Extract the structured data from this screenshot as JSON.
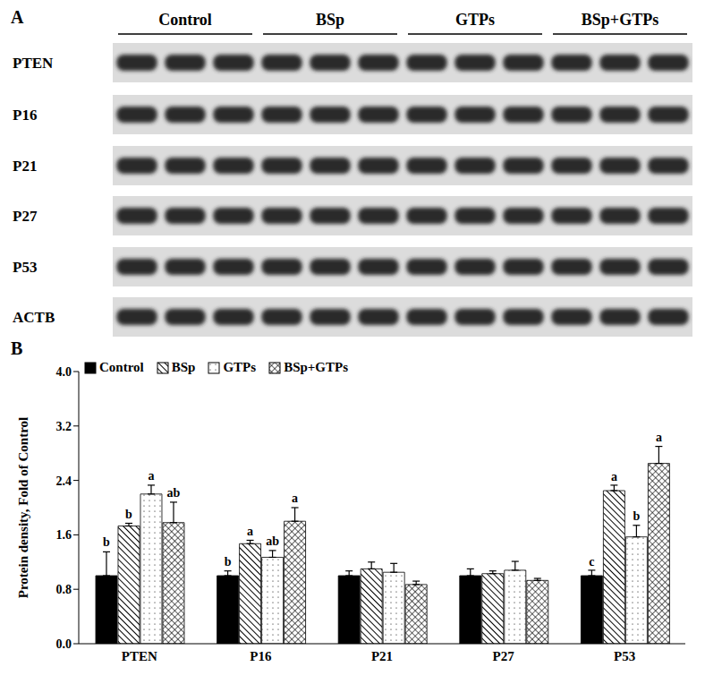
{
  "panel_labels": [
    "A",
    "B"
  ],
  "blot": {
    "groups": [
      "Control",
      "BSp",
      "GTPs",
      "BSp+GTPs"
    ],
    "lanes_per_group": 3,
    "proteins": [
      "PTEN",
      "P16",
      "P21",
      "P27",
      "P53",
      "ACTB"
    ]
  },
  "chart_data": {
    "type": "bar",
    "categories": [
      "PTEN",
      "P16",
      "P21",
      "P27",
      "P53"
    ],
    "ylabel": "Protein density, Fold of Control",
    "ylim": [
      0,
      4
    ],
    "yticks": [
      {
        "value": 0,
        "label": "0.0"
      },
      {
        "value": 0.8,
        "label": "0.8"
      },
      {
        "value": 1.6,
        "label": "1.6"
      },
      {
        "value": 2.4,
        "label": "2.4"
      },
      {
        "value": 3.2,
        "label": "3.2"
      },
      {
        "value": 4,
        "label": "4.0"
      }
    ],
    "legend": "top-left",
    "series": [
      {
        "name": "Control",
        "color": "#000000",
        "values": [
          1.0,
          1.0,
          1.0,
          1.0,
          1.0
        ],
        "errors": [
          0.35,
          0.07,
          0.07,
          0.1,
          0.08
        ],
        "letters": [
          "b",
          "b",
          null,
          null,
          "c"
        ]
      },
      {
        "name": "BSp",
        "color": "#000000",
        "values": [
          1.73,
          1.47,
          1.1,
          1.03,
          2.25
        ],
        "errors": [
          0.04,
          0.05,
          0.1,
          0.04,
          0.08
        ],
        "letters": [
          "b",
          "a",
          null,
          null,
          "a"
        ]
      },
      {
        "name": "GTPs",
        "color": "#000000",
        "values": [
          2.2,
          1.27,
          1.05,
          1.08,
          1.57
        ],
        "errors": [
          0.13,
          0.1,
          0.13,
          0.13,
          0.17
        ],
        "letters": [
          "a",
          "ab",
          null,
          null,
          "b"
        ]
      },
      {
        "name": "BSp+GTPs",
        "color": "#000000",
        "values": [
          1.78,
          1.8,
          0.87,
          0.93,
          2.65
        ],
        "errors": [
          0.3,
          0.2,
          0.05,
          0.03,
          0.25
        ],
        "letters": [
          "ab",
          "a",
          null,
          null,
          "a"
        ]
      }
    ]
  }
}
